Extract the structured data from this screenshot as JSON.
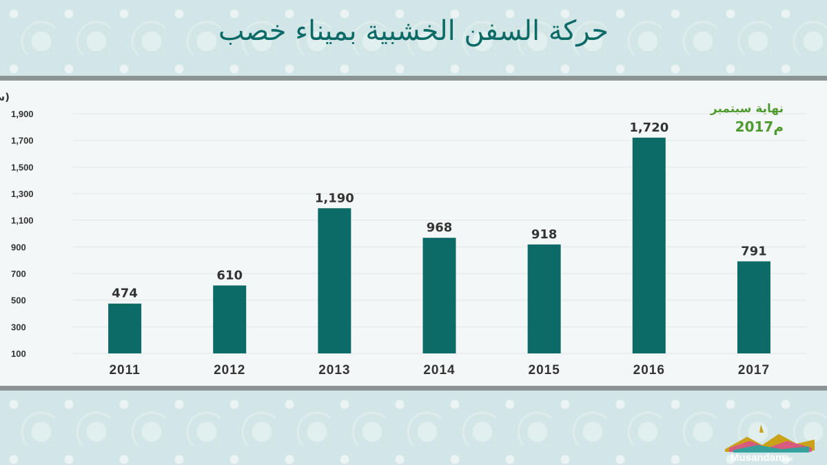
{
  "title": "حركة السفن الخشبية بميناء خصب",
  "note": {
    "line1": "نهاية سبتمبر",
    "line2": "2017م",
    "color": "#4e9a2f"
  },
  "logo": {
    "text": "Musandam",
    "suffix": ".net"
  },
  "colors": {
    "bar": "#0d6b67",
    "title": "#0d6b67",
    "grid": "#e2e6e6"
  },
  "chart_data": {
    "type": "bar",
    "categories": [
      "2011",
      "2012",
      "2013",
      "2014",
      "2015",
      "2016",
      "2017"
    ],
    "values": [
      474,
      610,
      1190,
      968,
      918,
      1720,
      791
    ],
    "data_labels": [
      "474",
      "610",
      "1,190",
      "968",
      "918",
      "1,720",
      "791"
    ],
    "title": "حركة السفن الخشبية بميناء خصب",
    "ylabel": "(سفينة)",
    "yticks": [
      100,
      300,
      500,
      700,
      900,
      1100,
      1300,
      1500,
      1700,
      1900
    ],
    "ytick_labels": [
      "100",
      "300",
      "500",
      "700",
      "900",
      "1,100",
      "1,300",
      "1,500",
      "1,700",
      "1,900"
    ],
    "ylim": [
      100,
      1900
    ],
    "grid": true
  }
}
